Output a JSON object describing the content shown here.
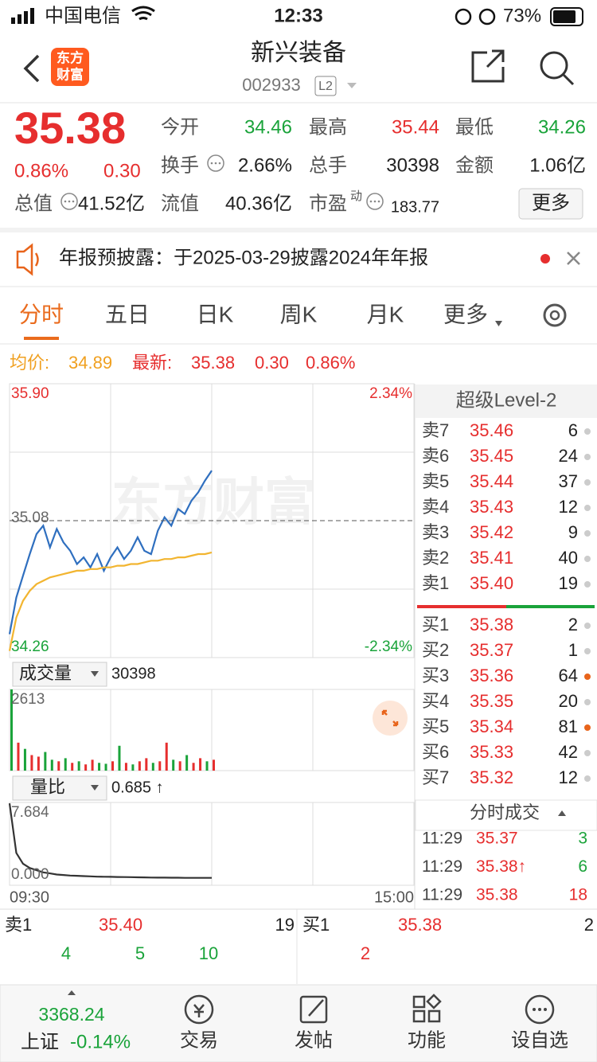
{
  "status_bar": {
    "carrier": "中国电信",
    "time": "12:33",
    "battery": "73%"
  },
  "header": {
    "logo_top": "东方",
    "logo_bottom": "财富",
    "title": "新兴装备",
    "code": "002933",
    "level": "L2"
  },
  "quote": {
    "price": "35.38",
    "change_pct": "0.86%",
    "change": "0.30",
    "more": "更多",
    "rows": [
      [
        {
          "label": "今开",
          "value": "34.46",
          "color": "#1aa33a"
        },
        {
          "label": "最高",
          "value": "35.44",
          "color": "#e62e2e"
        },
        {
          "label": "最低",
          "value": "34.26",
          "color": "#1aa33a"
        }
      ],
      [
        {
          "label": "换手",
          "value": "2.66%",
          "color": "#222"
        },
        {
          "label": "总手",
          "value": "30398",
          "color": "#222"
        },
        {
          "label": "金额",
          "value": "1.06亿",
          "color": "#222"
        }
      ],
      [
        {
          "label": "总值",
          "value": "41.52亿",
          "color": "#222"
        },
        {
          "label": "流值",
          "value": "40.36亿",
          "color": "#222"
        },
        {
          "label": "市盈",
          "sup": "动",
          "value": "183.77",
          "color": "#222"
        }
      ]
    ]
  },
  "notice": {
    "text": "年报预披露：于2025-03-29披露2024年年报"
  },
  "tabs": {
    "items": [
      "分时",
      "五日",
      "日K",
      "周K",
      "月K",
      "更多"
    ],
    "active": 0
  },
  "intraday_info": {
    "avg_label": "均价:",
    "avg": "34.89",
    "latest_label": "最新:",
    "latest": "35.38",
    "change": "0.30",
    "pct": "0.86%"
  },
  "watermark": "东方财富",
  "chart_data": [
    {
      "type": "line",
      "x": [
        0,
        4,
        8,
        12,
        16,
        20,
        24,
        28,
        32,
        36,
        40,
        44,
        48,
        52,
        56,
        60,
        64,
        68,
        72,
        76,
        80,
        84,
        88,
        92,
        96,
        100,
        104,
        108,
        112,
        116,
        120
      ],
      "xlim": [
        0,
        240
      ],
      "ylim": [
        34.26,
        35.9
      ],
      "yticks": [
        {
          "value": 35.9,
          "label": "35.90"
        },
        35.08,
        34.26
      ],
      "y2lim": [
        -2.34,
        2.34
      ],
      "y2ticks": [
        {
          "value": 2.34,
          "label": "2.34%"
        },
        {
          "value": -2.34,
          "label": "-2.34%"
        }
      ],
      "series": [
        {
          "color": "#2f6fbf",
          "values": [
            34.4,
            34.62,
            34.75,
            34.88,
            35.0,
            35.05,
            34.92,
            35.03,
            34.95,
            34.9,
            34.82,
            34.86,
            34.8,
            34.88,
            34.78,
            34.86,
            34.92,
            34.85,
            34.9,
            34.98,
            34.9,
            34.88,
            35.02,
            35.1,
            35.05,
            35.15,
            35.12,
            35.2,
            35.25,
            35.32,
            35.38
          ]
        },
        {
          "name": "均价",
          "color": "#f2b530",
          "values": [
            34.3,
            34.5,
            34.6,
            34.66,
            34.7,
            34.72,
            34.74,
            34.75,
            34.76,
            34.77,
            34.78,
            34.78,
            34.79,
            34.79,
            34.8,
            34.8,
            34.81,
            34.81,
            34.82,
            34.82,
            34.83,
            34.84,
            34.84,
            34.85,
            34.85,
            34.86,
            34.86,
            34.87,
            34.88,
            34.88,
            34.89
          ]
        }
      ]
    },
    {
      "type": "bar",
      "title": "成交量",
      "total": "30398",
      "x": [
        0,
        4,
        8,
        12,
        16,
        20,
        24,
        28,
        32,
        36,
        40,
        44,
        48,
        52,
        56,
        60,
        64,
        68,
        72,
        76,
        80,
        84,
        88,
        92,
        96,
        100,
        104,
        108,
        112,
        116,
        120
      ],
      "xlim": [
        0,
        240
      ],
      "ylim": [
        0,
        2613
      ],
      "yticks": [
        2613
      ],
      "values": [
        2613,
        900,
        700,
        500,
        450,
        600,
        350,
        300,
        400,
        250,
        300,
        200,
        350,
        250,
        220,
        300,
        800,
        250,
        200,
        300,
        400,
        250,
        300,
        900,
        350,
        300,
        500,
        250,
        400,
        300,
        350
      ],
      "colors": [
        "#1aa33a",
        "#e62e2e",
        "#1aa33a",
        "#e62e2e",
        "#e62e2e",
        "#1aa33a",
        "#1aa33a",
        "#e62e2e",
        "#1aa33a",
        "#e62e2e",
        "#1aa33a",
        "#e62e2e",
        "#e62e2e",
        "#1aa33a",
        "#1aa33a",
        "#e62e2e",
        "#1aa33a",
        "#e62e2e",
        "#1aa33a",
        "#e62e2e",
        "#e62e2e",
        "#1aa33a",
        "#e62e2e",
        "#e62e2e",
        "#1aa33a",
        "#e62e2e",
        "#1aa33a",
        "#e62e2e",
        "#e62e2e",
        "#1aa33a",
        "#e62e2e"
      ]
    },
    {
      "type": "line",
      "title": "量比",
      "value": "0.685 ↑",
      "x": [
        0,
        4,
        8,
        12,
        16,
        20,
        24,
        28,
        32,
        36,
        40,
        44,
        48,
        52,
        56,
        60,
        64,
        68,
        72,
        76,
        80,
        84,
        88,
        92,
        96,
        100,
        104,
        108,
        112,
        116,
        120
      ],
      "xlim": [
        0,
        240
      ],
      "xticks": [
        {
          "value": 0,
          "label": "09:30"
        },
        {
          "value": 240,
          "label": "15:00"
        }
      ],
      "ylim": [
        0,
        7.684
      ],
      "yticks": [
        7.684,
        {
          "value": 0,
          "label": "0.000"
        }
      ],
      "series": [
        {
          "color": "#333333",
          "values": [
            7.6,
            3.0,
            2.0,
            1.6,
            1.4,
            1.2,
            1.1,
            1.0,
            0.95,
            0.9,
            0.88,
            0.85,
            0.83,
            0.8,
            0.79,
            0.78,
            0.77,
            0.76,
            0.75,
            0.74,
            0.73,
            0.72,
            0.71,
            0.71,
            0.7,
            0.7,
            0.69,
            0.69,
            0.69,
            0.69,
            0.685
          ]
        }
      ]
    }
  ],
  "level2": {
    "title": "超级Level-2",
    "asks": [
      {
        "label": "卖7",
        "price": "35.46",
        "volume": "6",
        "dot": "#cccccc"
      },
      {
        "label": "卖6",
        "price": "35.45",
        "volume": "24",
        "dot": "#cccccc"
      },
      {
        "label": "卖5",
        "price": "35.44",
        "volume": "37",
        "dot": "#cccccc"
      },
      {
        "label": "卖4",
        "price": "35.43",
        "volume": "12",
        "dot": "#cccccc"
      },
      {
        "label": "卖3",
        "price": "35.42",
        "volume": "9",
        "dot": "#cccccc"
      },
      {
        "label": "卖2",
        "price": "35.41",
        "volume": "40",
        "dot": "#cccccc"
      },
      {
        "label": "卖1",
        "price": "35.40",
        "volume": "19",
        "dot": "#cccccc"
      }
    ],
    "bids": [
      {
        "label": "买1",
        "price": "35.38",
        "volume": "2",
        "dot": "#cccccc"
      },
      {
        "label": "买2",
        "price": "35.37",
        "volume": "1",
        "dot": "#cccccc"
      },
      {
        "label": "买3",
        "price": "35.36",
        "volume": "64",
        "dot": "#e8641b"
      },
      {
        "label": "买4",
        "price": "35.35",
        "volume": "20",
        "dot": "#cccccc"
      },
      {
        "label": "买5",
        "price": "35.34",
        "volume": "81",
        "dot": "#e8641b"
      },
      {
        "label": "买6",
        "price": "35.33",
        "volume": "42",
        "dot": "#cccccc"
      },
      {
        "label": "买7",
        "price": "35.32",
        "volume": "12",
        "dot": "#cccccc"
      }
    ],
    "trades_title": "分时成交",
    "trades": [
      {
        "time": "11:29",
        "price": "35.37",
        "volume": "3",
        "color": "#1aa33a"
      },
      {
        "time": "11:29",
        "price": "35.38↑",
        "volume": "6",
        "color": "#1aa33a"
      },
      {
        "time": "11:29",
        "price": "35.38",
        "volume": "18",
        "color": "#e62e2e"
      }
    ]
  },
  "bottom_book": {
    "sell": {
      "label": "卖1",
      "price": "35.40",
      "volume": "19",
      "queue": [
        "4",
        "5",
        "10"
      ]
    },
    "buy": {
      "label": "买1",
      "price": "35.38",
      "volume": "2",
      "queue": [
        "2"
      ]
    }
  },
  "tab_bar": {
    "index_value": "3368.24",
    "index_name": "上证",
    "index_change": "-0.14%",
    "items": [
      "交易",
      "发帖",
      "功能",
      "设自选"
    ]
  }
}
